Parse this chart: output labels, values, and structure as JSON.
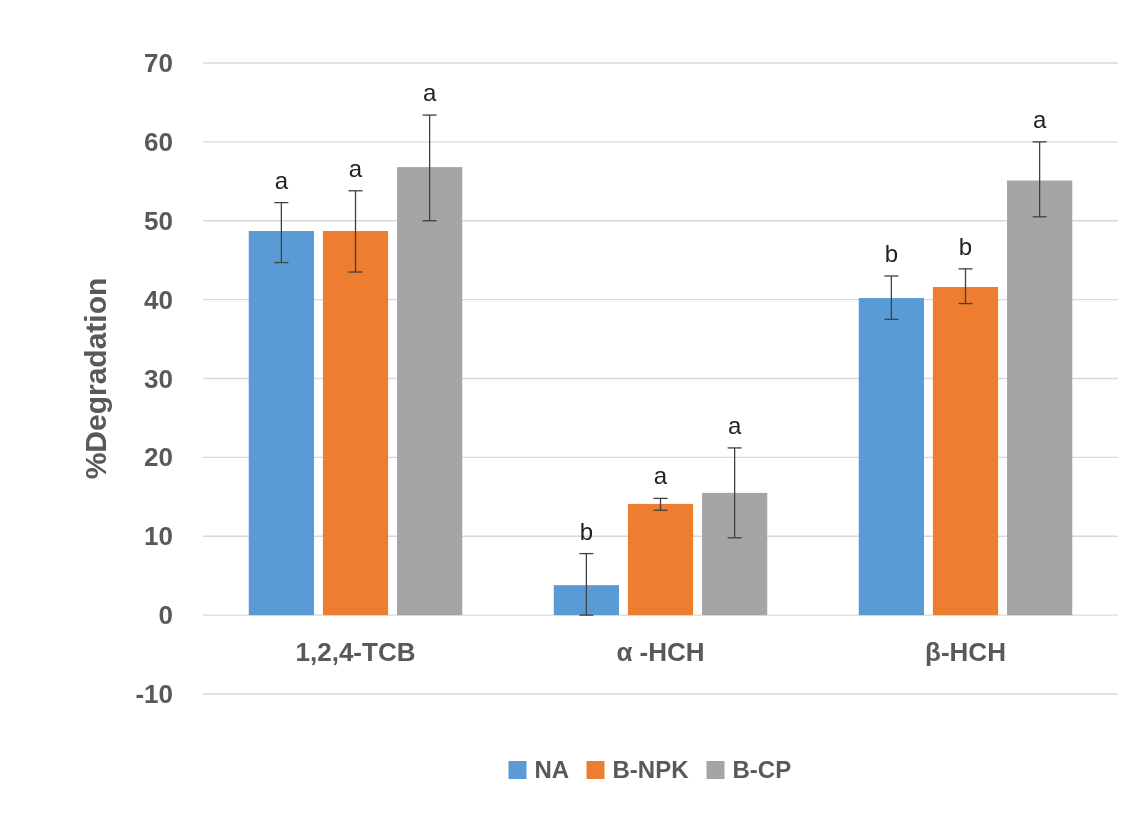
{
  "chart_data": {
    "type": "bar",
    "ylabel": "%Degradation",
    "categories": [
      "1,2,4-TCB",
      "α -HCH",
      "β-HCH"
    ],
    "series": [
      {
        "name": "NA",
        "color": "#5b9bd5",
        "values": [
          48.7,
          3.8,
          40.2
        ],
        "errors": [
          [
            44.7,
            52.3
          ],
          [
            0,
            7.8
          ],
          [
            37.5,
            43
          ]
        ],
        "value_labels": [
          "a",
          "b",
          "b"
        ]
      },
      {
        "name": "B-NPK",
        "color": "#ed7d31",
        "values": [
          48.7,
          14.1,
          41.6
        ],
        "errors": [
          [
            43.5,
            53.8
          ],
          [
            13.3,
            14.8
          ],
          [
            39.5,
            43.9
          ]
        ],
        "value_labels": [
          "a",
          "a",
          "b"
        ]
      },
      {
        "name": "B-CP",
        "color": "#a5a5a5",
        "values": [
          56.8,
          15.5,
          55.1
        ],
        "errors": [
          [
            50,
            63.4
          ],
          [
            9.8,
            21.2
          ],
          [
            50.5,
            60
          ]
        ],
        "value_labels": [
          "a",
          "a",
          "a"
        ]
      }
    ],
    "ylim": [
      -10,
      70
    ],
    "yticks": [
      -10,
      0,
      10,
      20,
      30,
      40,
      50,
      60,
      70
    ],
    "grid": "y",
    "legend": "bottom"
  }
}
